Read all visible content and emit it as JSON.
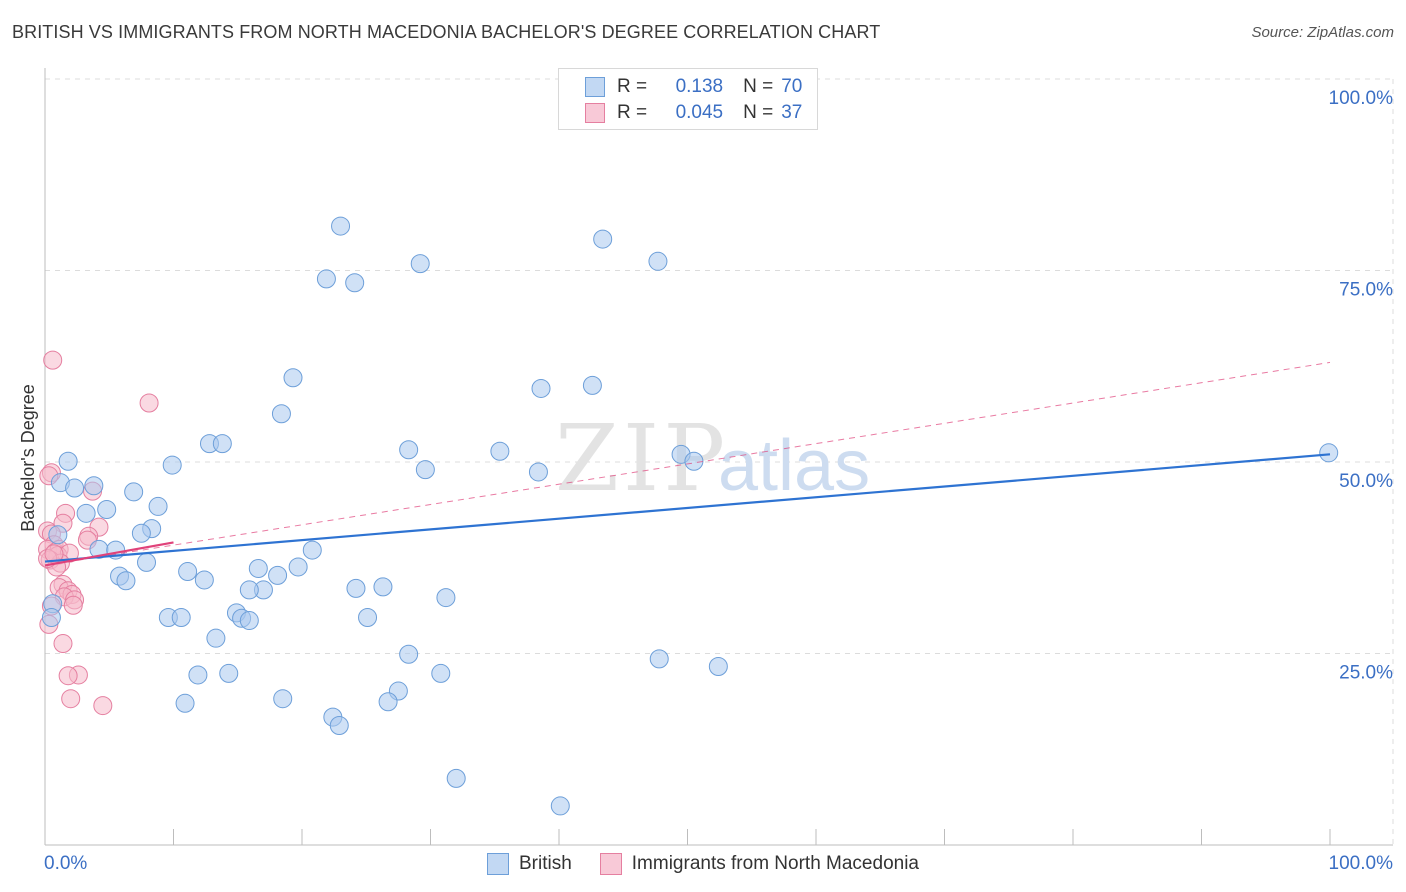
{
  "header": {
    "title": "BRITISH VS IMMIGRANTS FROM NORTH MACEDONIA BACHELOR'S DEGREE CORRELATION CHART",
    "source": "Source: ZipAtlas.com"
  },
  "legend": {
    "rows": [
      {
        "r_label": "R =",
        "r_value": "0.138",
        "n_label": "N =",
        "n_value": "70"
      },
      {
        "r_label": "R =",
        "r_value": "0.045",
        "n_label": "N =",
        "n_value": "37"
      }
    ]
  },
  "bottom_legend": {
    "series1": "British",
    "series2": "Immigrants from North Macedonia"
  },
  "watermark": {
    "zip": "ZIP",
    "atlas": "atlas"
  },
  "colors": {
    "blue_fill": "#a9c8ee",
    "blue_stroke": "#6d9fd9",
    "blue_line": "#2e73d2",
    "pink_fill": "#f5b9cb",
    "pink_stroke": "#e57fa0",
    "pink_line": "#e0427a",
    "axis_text": "#3b6fc4",
    "grid": "#dcdcdc"
  },
  "chart_data": {
    "type": "scatter",
    "title": "BRITISH VS IMMIGRANTS FROM NORTH MACEDONIA BACHELOR'S DEGREE CORRELATION CHART",
    "xlabel": "",
    "ylabel": "Bachelor's Degree",
    "xlim": [
      0,
      100
    ],
    "ylim": [
      0,
      100
    ],
    "x_tick_labels": [
      "0.0%",
      "100.0%"
    ],
    "y_tick_labels": [
      "100.0%",
      "75.0%",
      "50.0%",
      "25.0%"
    ],
    "y_ticks": [
      100,
      75,
      50,
      25
    ],
    "series": [
      {
        "name": "British",
        "r": 0.138,
        "n": 70,
        "trend": {
          "x": [
            0,
            100
          ],
          "y": [
            37,
            51
          ]
        },
        "points": [
          [
            1.8,
            50.1
          ],
          [
            1.2,
            47.3
          ],
          [
            2.3,
            46.6
          ],
          [
            3.8,
            46.9
          ],
          [
            6.9,
            46.1
          ],
          [
            9.9,
            49.6
          ],
          [
            12.8,
            52.4
          ],
          [
            13.8,
            52.4
          ],
          [
            8.8,
            44.2
          ],
          [
            4.8,
            43.8
          ],
          [
            3.2,
            43.3
          ],
          [
            8.3,
            41.3
          ],
          [
            7.5,
            40.7
          ],
          [
            4.2,
            38.6
          ],
          [
            5.5,
            38.5
          ],
          [
            7.9,
            36.9
          ],
          [
            5.8,
            35.1
          ],
          [
            6.3,
            34.5
          ],
          [
            11.1,
            35.7
          ],
          [
            12.4,
            34.6
          ],
          [
            16.6,
            36.1
          ],
          [
            18.1,
            35.2
          ],
          [
            19.7,
            36.3
          ],
          [
            20.8,
            38.5
          ],
          [
            17.0,
            33.3
          ],
          [
            15.9,
            33.3
          ],
          [
            14.9,
            30.3
          ],
          [
            15.3,
            29.6
          ],
          [
            15.9,
            29.3
          ],
          [
            9.6,
            29.7
          ],
          [
            10.6,
            29.7
          ],
          [
            13.3,
            27.0
          ],
          [
            11.9,
            22.2
          ],
          [
            14.3,
            22.4
          ],
          [
            10.9,
            18.5
          ],
          [
            18.5,
            19.1
          ],
          [
            24.2,
            33.5
          ],
          [
            26.3,
            33.7
          ],
          [
            25.1,
            29.7
          ],
          [
            31.2,
            32.3
          ],
          [
            28.3,
            24.9
          ],
          [
            30.8,
            22.4
          ],
          [
            27.5,
            20.1
          ],
          [
            26.7,
            18.7
          ],
          [
            22.4,
            16.7
          ],
          [
            22.9,
            15.6
          ],
          [
            32.0,
            8.7
          ],
          [
            40.1,
            5.1
          ],
          [
            47.8,
            24.3
          ],
          [
            52.4,
            23.3
          ],
          [
            18.4,
            56.3
          ],
          [
            19.3,
            61.0
          ],
          [
            23.0,
            80.8
          ],
          [
            21.9,
            73.9
          ],
          [
            24.1,
            73.4
          ],
          [
            29.2,
            75.9
          ],
          [
            43.4,
            79.1
          ],
          [
            47.7,
            76.2
          ],
          [
            38.6,
            59.6
          ],
          [
            42.6,
            60.0
          ],
          [
            28.3,
            51.6
          ],
          [
            29.6,
            49.0
          ],
          [
            35.4,
            51.4
          ],
          [
            38.4,
            48.7
          ],
          [
            49.5,
            51.0
          ],
          [
            50.5,
            50.1
          ],
          [
            99.9,
            51.2
          ],
          [
            0.6,
            31.5
          ],
          [
            0.5,
            29.7
          ],
          [
            1.0,
            40.5
          ]
        ]
      },
      {
        "name": "Immigrants from North Macedonia",
        "r": 0.045,
        "n": 37,
        "trend_solid": {
          "x": [
            0,
            10
          ],
          "y": [
            36.5,
            39.5
          ]
        },
        "trend_dashed": {
          "x": [
            0,
            100
          ],
          "y": [
            36.5,
            63
          ]
        },
        "points": [
          [
            0.6,
            63.3
          ],
          [
            0.5,
            48.6
          ],
          [
            0.3,
            48.2
          ],
          [
            3.7,
            46.2
          ],
          [
            8.1,
            57.7
          ],
          [
            1.6,
            43.3
          ],
          [
            1.4,
            42.0
          ],
          [
            4.2,
            41.5
          ],
          [
            3.4,
            40.3
          ],
          [
            3.3,
            39.8
          ],
          [
            0.2,
            41.0
          ],
          [
            0.5,
            40.6
          ],
          [
            0.7,
            39.2
          ],
          [
            0.2,
            38.6
          ],
          [
            0.8,
            38.2
          ],
          [
            1.1,
            38.6
          ],
          [
            1.0,
            37.8
          ],
          [
            1.9,
            38.1
          ],
          [
            0.4,
            37.2
          ],
          [
            1.2,
            36.8
          ],
          [
            0.9,
            36.3
          ],
          [
            1.4,
            34.0
          ],
          [
            1.1,
            33.6
          ],
          [
            1.8,
            33.2
          ],
          [
            2.1,
            32.7
          ],
          [
            1.5,
            32.4
          ],
          [
            2.3,
            32.0
          ],
          [
            2.2,
            31.3
          ],
          [
            0.5,
            31.2
          ],
          [
            0.3,
            28.8
          ],
          [
            1.4,
            26.3
          ],
          [
            2.6,
            22.2
          ],
          [
            1.8,
            22.1
          ],
          [
            2.0,
            19.1
          ],
          [
            4.5,
            18.2
          ],
          [
            0.2,
            37.4
          ],
          [
            0.7,
            38.0
          ]
        ]
      }
    ]
  }
}
